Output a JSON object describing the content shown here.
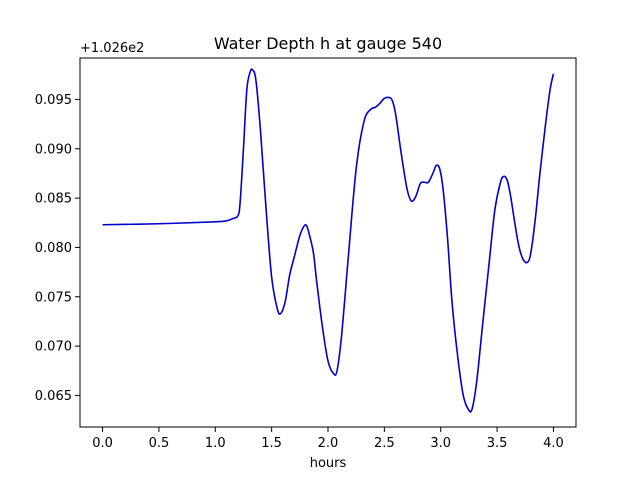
{
  "chart_data": {
    "type": "line",
    "title": "Water Depth h at gauge 540",
    "xlabel": "hours",
    "ylabel": "",
    "y_offset_label": "+1.026e2",
    "xlim": [
      -0.2,
      4.2
    ],
    "ylim": [
      0.0618,
      0.0992
    ],
    "x_ticks": [
      0.0,
      0.5,
      1.0,
      1.5,
      2.0,
      2.5,
      3.0,
      3.5,
      4.0
    ],
    "x_tick_labels": [
      "0.0",
      "0.5",
      "1.0",
      "1.5",
      "2.0",
      "2.5",
      "3.0",
      "3.5",
      "4.0"
    ],
    "y_ticks": [
      0.065,
      0.07,
      0.075,
      0.08,
      0.085,
      0.09,
      0.095
    ],
    "y_tick_labels": [
      "0.065",
      "0.070",
      "0.075",
      "0.080",
      "0.085",
      "0.090",
      "0.095"
    ],
    "grid": false,
    "series": [
      {
        "color": "#0000cc",
        "x": [
          0.0,
          0.5,
          1.0,
          1.1,
          1.15,
          1.2,
          1.22,
          1.25,
          1.28,
          1.31,
          1.33,
          1.36,
          1.4,
          1.45,
          1.5,
          1.55,
          1.58,
          1.62,
          1.66,
          1.7,
          1.75,
          1.79,
          1.81,
          1.83,
          1.87,
          1.9,
          1.95,
          2.0,
          2.05,
          2.08,
          2.12,
          2.18,
          2.25,
          2.32,
          2.38,
          2.42,
          2.46,
          2.5,
          2.54,
          2.57,
          2.6,
          2.65,
          2.7,
          2.74,
          2.78,
          2.82,
          2.86,
          2.89,
          2.93,
          2.96,
          2.99,
          3.02,
          3.06,
          3.1,
          3.15,
          3.2,
          3.25,
          3.28,
          3.32,
          3.37,
          3.43,
          3.48,
          3.53,
          3.56,
          3.59,
          3.62,
          3.65,
          3.69,
          3.73,
          3.77,
          3.8,
          3.84,
          3.88,
          3.93,
          3.97,
          4.0
        ],
        "y": [
          0.0823,
          0.0824,
          0.0826,
          0.0827,
          0.0829,
          0.0832,
          0.0845,
          0.09,
          0.096,
          0.0978,
          0.098,
          0.097,
          0.092,
          0.084,
          0.077,
          0.0738,
          0.0733,
          0.0745,
          0.0772,
          0.079,
          0.0812,
          0.0822,
          0.0822,
          0.0815,
          0.0795,
          0.0765,
          0.072,
          0.0685,
          0.0672,
          0.0675,
          0.071,
          0.079,
          0.088,
          0.0928,
          0.094,
          0.0942,
          0.0946,
          0.0951,
          0.0952,
          0.0949,
          0.0935,
          0.0895,
          0.086,
          0.0847,
          0.0852,
          0.0865,
          0.0866,
          0.0866,
          0.0875,
          0.0883,
          0.088,
          0.086,
          0.081,
          0.0745,
          0.069,
          0.065,
          0.0635,
          0.0637,
          0.0665,
          0.072,
          0.0785,
          0.0838,
          0.0866,
          0.0872,
          0.0868,
          0.0852,
          0.083,
          0.0803,
          0.0788,
          0.0785,
          0.0795,
          0.083,
          0.0875,
          0.0925,
          0.096,
          0.0976
        ]
      }
    ]
  }
}
